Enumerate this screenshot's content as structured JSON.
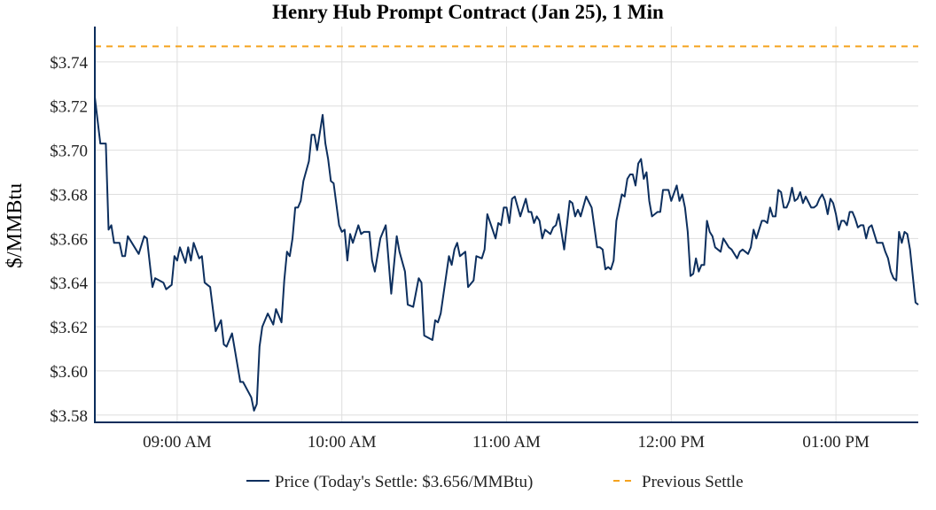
{
  "chart_data": {
    "type": "line",
    "title": "Henry Hub Prompt Contract (Jan 25), 1 Min",
    "xlabel": "",
    "ylabel": "$/MMBtu",
    "xlim": [
      "08:30",
      "13:30"
    ],
    "ylim": [
      3.5767,
      3.756
    ],
    "grid": true,
    "legend_placement": "bottom",
    "x_ticks": [
      {
        "time": "09:00",
        "label": "09:00 AM"
      },
      {
        "time": "10:00",
        "label": "10:00 AM"
      },
      {
        "time": "11:00",
        "label": "11:00 AM"
      },
      {
        "time": "12:00",
        "label": "12:00 PM"
      },
      {
        "time": "13:00",
        "label": "01:00 PM"
      }
    ],
    "y_ticks": [
      {
        "value": 3.58,
        "label": "$3.58"
      },
      {
        "value": 3.6,
        "label": "$3.60"
      },
      {
        "value": 3.62,
        "label": "$3.62"
      },
      {
        "value": 3.64,
        "label": "$3.64"
      },
      {
        "value": 3.66,
        "label": "$3.66"
      },
      {
        "value": 3.68,
        "label": "$3.68"
      },
      {
        "value": 3.7,
        "label": "$3.70"
      },
      {
        "value": 3.72,
        "label": "$3.72"
      },
      {
        "value": 3.74,
        "label": "$3.74"
      }
    ],
    "series": [
      {
        "name": "Price (Today's Settle: $3.656/MMBtu)",
        "color": "#0d2f5e",
        "style": "solid",
        "points": [
          [
            "08:30",
            3.724
          ],
          [
            "08:32",
            3.703
          ],
          [
            "08:34",
            3.703
          ],
          [
            "08:35",
            3.664
          ],
          [
            "08:36",
            3.666
          ],
          [
            "08:37",
            3.658
          ],
          [
            "08:39",
            3.658
          ],
          [
            "08:40",
            3.652
          ],
          [
            "08:41",
            3.652
          ],
          [
            "08:42",
            3.661
          ],
          [
            "08:46",
            3.653
          ],
          [
            "08:48",
            3.661
          ],
          [
            "08:49",
            3.66
          ],
          [
            "08:51",
            3.638
          ],
          [
            "08:52",
            3.642
          ],
          [
            "08:55",
            3.64
          ],
          [
            "08:56",
            3.637
          ],
          [
            "08:58",
            3.639
          ],
          [
            "08:59",
            3.652
          ],
          [
            "09:00",
            3.65
          ],
          [
            "09:01",
            3.656
          ],
          [
            "09:03",
            3.649
          ],
          [
            "09:04",
            3.656
          ],
          [
            "09:05",
            3.65
          ],
          [
            "09:06",
            3.658
          ],
          [
            "09:08",
            3.651
          ],
          [
            "09:09",
            3.652
          ],
          [
            "09:10",
            3.64
          ],
          [
            "09:12",
            3.638
          ],
          [
            "09:14",
            3.618
          ],
          [
            "09:16",
            3.623
          ],
          [
            "09:17",
            3.612
          ],
          [
            "09:18",
            3.611
          ],
          [
            "09:20",
            3.617
          ],
          [
            "09:23",
            3.595
          ],
          [
            "09:24",
            3.595
          ],
          [
            "09:27",
            3.588
          ],
          [
            "09:28",
            3.582
          ],
          [
            "09:29",
            3.585
          ],
          [
            "09:30",
            3.611
          ],
          [
            "09:31",
            3.62
          ],
          [
            "09:33",
            3.626
          ],
          [
            "09:35",
            3.621
          ],
          [
            "09:36",
            3.628
          ],
          [
            "09:38",
            3.622
          ],
          [
            "09:39",
            3.641
          ],
          [
            "09:40",
            3.654
          ],
          [
            "09:41",
            3.652
          ],
          [
            "09:42",
            3.66
          ],
          [
            "09:43",
            3.674
          ],
          [
            "09:44",
            3.674
          ],
          [
            "09:45",
            3.677
          ],
          [
            "09:46",
            3.686
          ],
          [
            "09:48",
            3.695
          ],
          [
            "09:49",
            3.707
          ],
          [
            "09:50",
            3.707
          ],
          [
            "09:51",
            3.7
          ],
          [
            "09:53",
            3.716
          ],
          [
            "09:54",
            3.703
          ],
          [
            "09:55",
            3.696
          ],
          [
            "09:56",
            3.686
          ],
          [
            "09:57",
            3.685
          ],
          [
            "09:59",
            3.666
          ],
          [
            "10:00",
            3.663
          ],
          [
            "10:01",
            3.664
          ],
          [
            "10:02",
            3.65
          ],
          [
            "10:03",
            3.662
          ],
          [
            "10:04",
            3.658
          ],
          [
            "10:06",
            3.666
          ],
          [
            "10:07",
            3.662
          ],
          [
            "10:08",
            3.663
          ],
          [
            "10:10",
            3.663
          ],
          [
            "10:11",
            3.65
          ],
          [
            "10:12",
            3.645
          ],
          [
            "10:14",
            3.66
          ],
          [
            "10:15",
            3.663
          ],
          [
            "10:16",
            3.666
          ],
          [
            "10:18",
            3.635
          ],
          [
            "10:20",
            3.661
          ],
          [
            "10:21",
            3.654
          ],
          [
            "10:23",
            3.645
          ],
          [
            "10:24",
            3.63
          ],
          [
            "10:26",
            3.629
          ],
          [
            "10:28",
            3.642
          ],
          [
            "10:29",
            3.64
          ],
          [
            "10:30",
            3.616
          ],
          [
            "10:33",
            3.614
          ],
          [
            "10:34",
            3.623
          ],
          [
            "10:35",
            3.622
          ],
          [
            "10:36",
            3.626
          ],
          [
            "10:39",
            3.652
          ],
          [
            "10:40",
            3.648
          ],
          [
            "10:41",
            3.655
          ],
          [
            "10:42",
            3.658
          ],
          [
            "10:43",
            3.652
          ],
          [
            "10:45",
            3.654
          ],
          [
            "10:46",
            3.638
          ],
          [
            "10:48",
            3.641
          ],
          [
            "10:49",
            3.652
          ],
          [
            "10:51",
            3.651
          ],
          [
            "10:52",
            3.655
          ],
          [
            "10:53",
            3.671
          ],
          [
            "10:56",
            3.66
          ],
          [
            "10:57",
            3.667
          ],
          [
            "10:58",
            3.666
          ],
          [
            "10:59",
            3.674
          ],
          [
            "11:00",
            3.674
          ],
          [
            "11:01",
            3.667
          ],
          [
            "11:02",
            3.678
          ],
          [
            "11:03",
            3.679
          ],
          [
            "11:05",
            3.67
          ],
          [
            "11:07",
            3.678
          ],
          [
            "11:08",
            3.672
          ],
          [
            "11:09",
            3.672
          ],
          [
            "11:10",
            3.667
          ],
          [
            "11:11",
            3.67
          ],
          [
            "11:12",
            3.668
          ],
          [
            "11:13",
            3.66
          ],
          [
            "11:14",
            3.664
          ],
          [
            "11:16",
            3.662
          ],
          [
            "11:17",
            3.665
          ],
          [
            "11:18",
            3.666
          ],
          [
            "11:19",
            3.671
          ],
          [
            "11:20",
            3.663
          ],
          [
            "11:21",
            3.655
          ],
          [
            "11:23",
            3.677
          ],
          [
            "11:24",
            3.676
          ],
          [
            "11:25",
            3.67
          ],
          [
            "11:26",
            3.673
          ],
          [
            "11:27",
            3.67
          ],
          [
            "11:29",
            3.679
          ],
          [
            "11:31",
            3.674
          ],
          [
            "11:33",
            3.656
          ],
          [
            "11:34",
            3.656
          ],
          [
            "11:35",
            3.655
          ],
          [
            "11:36",
            3.646
          ],
          [
            "11:37",
            3.647
          ],
          [
            "11:38",
            3.646
          ],
          [
            "11:39",
            3.65
          ],
          [
            "11:40",
            3.668
          ],
          [
            "11:42",
            3.68
          ],
          [
            "11:43",
            3.679
          ],
          [
            "11:44",
            3.687
          ],
          [
            "11:45",
            3.689
          ],
          [
            "11:46",
            3.689
          ],
          [
            "11:47",
            3.684
          ],
          [
            "11:48",
            3.694
          ],
          [
            "11:49",
            3.696
          ],
          [
            "11:50",
            3.687
          ],
          [
            "11:51",
            3.69
          ],
          [
            "11:52",
            3.677
          ],
          [
            "11:53",
            3.67
          ],
          [
            "11:55",
            3.672
          ],
          [
            "11:56",
            3.672
          ],
          [
            "11:57",
            3.682
          ],
          [
            "11:59",
            3.682
          ],
          [
            "12:00",
            3.677
          ],
          [
            "12:02",
            3.684
          ],
          [
            "12:03",
            3.677
          ],
          [
            "12:04",
            3.68
          ],
          [
            "12:05",
            3.674
          ],
          [
            "12:06",
            3.663
          ],
          [
            "12:07",
            3.643
          ],
          [
            "12:08",
            3.644
          ],
          [
            "12:09",
            3.651
          ],
          [
            "12:10",
            3.645
          ],
          [
            "12:11",
            3.648
          ],
          [
            "12:12",
            3.648
          ],
          [
            "12:13",
            3.668
          ],
          [
            "12:14",
            3.663
          ],
          [
            "12:15",
            3.661
          ],
          [
            "12:16",
            3.656
          ],
          [
            "12:18",
            3.654
          ],
          [
            "12:19",
            3.66
          ],
          [
            "12:20",
            3.658
          ],
          [
            "12:21",
            3.656
          ],
          [
            "12:22",
            3.655
          ],
          [
            "12:24",
            3.651
          ],
          [
            "12:25",
            3.654
          ],
          [
            "12:26",
            3.655
          ],
          [
            "12:28",
            3.653
          ],
          [
            "12:29",
            3.656
          ],
          [
            "12:30",
            3.664
          ],
          [
            "12:31",
            3.66
          ],
          [
            "12:33",
            3.668
          ],
          [
            "12:34",
            3.668
          ],
          [
            "12:35",
            3.667
          ],
          [
            "12:36",
            3.674
          ],
          [
            "12:37",
            3.67
          ],
          [
            "12:38",
            3.67
          ],
          [
            "12:39",
            3.682
          ],
          [
            "12:40",
            3.681
          ],
          [
            "12:41",
            3.674
          ],
          [
            "12:42",
            3.674
          ],
          [
            "12:43",
            3.677
          ],
          [
            "12:44",
            3.683
          ],
          [
            "12:45",
            3.677
          ],
          [
            "12:46",
            3.678
          ],
          [
            "12:47",
            3.681
          ],
          [
            "12:48",
            3.676
          ],
          [
            "12:49",
            3.679
          ],
          [
            "12:51",
            3.674
          ],
          [
            "12:52",
            3.674
          ],
          [
            "12:53",
            3.675
          ],
          [
            "12:54",
            3.678
          ],
          [
            "12:55",
            3.68
          ],
          [
            "12:56",
            3.677
          ],
          [
            "12:57",
            3.671
          ],
          [
            "12:58",
            3.678
          ],
          [
            "12:59",
            3.676
          ],
          [
            "13:00",
            3.671
          ],
          [
            "13:01",
            3.664
          ],
          [
            "13:02",
            3.668
          ],
          [
            "13:03",
            3.668
          ],
          [
            "13:04",
            3.666
          ],
          [
            "13:05",
            3.672
          ],
          [
            "13:06",
            3.672
          ],
          [
            "13:07",
            3.669
          ],
          [
            "13:08",
            3.665
          ],
          [
            "13:09",
            3.666
          ],
          [
            "13:10",
            3.666
          ],
          [
            "13:11",
            3.66
          ],
          [
            "13:12",
            3.665
          ],
          [
            "13:13",
            3.666
          ],
          [
            "13:15",
            3.658
          ],
          [
            "13:17",
            3.658
          ],
          [
            "13:18",
            3.654
          ],
          [
            "13:19",
            3.651
          ],
          [
            "13:20",
            3.645
          ],
          [
            "13:21",
            3.642
          ],
          [
            "13:22",
            3.641
          ],
          [
            "13:23",
            3.663
          ],
          [
            "13:24",
            3.658
          ],
          [
            "13:25",
            3.663
          ],
          [
            "13:26",
            3.662
          ],
          [
            "13:27",
            3.655
          ],
          [
            "13:29",
            3.631
          ],
          [
            "13:30",
            3.63
          ]
        ]
      },
      {
        "name": "Previous Settle",
        "color": "#f5a31f",
        "style": "dashed",
        "value": 3.747
      }
    ]
  }
}
